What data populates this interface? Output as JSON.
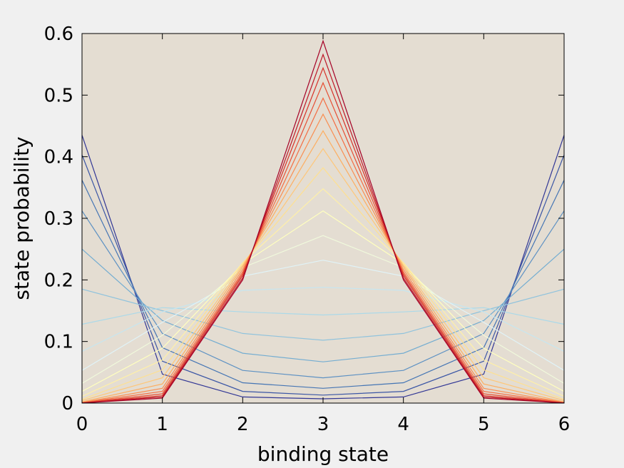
{
  "chart_data": {
    "type": "line",
    "title": "",
    "xlabel": "binding state",
    "ylabel": "state probability",
    "xlim": [
      0,
      6
    ],
    "ylim": [
      0,
      0.6
    ],
    "x": [
      0,
      1,
      2,
      3,
      4,
      5,
      6
    ],
    "xticks": [
      "0",
      "1",
      "2",
      "3",
      "4",
      "5",
      "6"
    ],
    "yticks": [
      "0",
      "0.1",
      "0.2",
      "0.3",
      "0.4",
      "0.5",
      "0.6"
    ],
    "grid": false,
    "plot_background": "#e4ddd2",
    "colormap": [
      "#313695",
      "#4575b4",
      "#74add1",
      "#abd9e9",
      "#e0f3f8",
      "#ffffbf",
      "#fee090",
      "#fdae61",
      "#f46d43",
      "#d73027",
      "#a50026"
    ],
    "series": [
      {
        "values": [
          0.435,
          0.047,
          0.01,
          0.007,
          0.01,
          0.047,
          0.435
        ]
      },
      {
        "values": [
          0.403,
          0.068,
          0.019,
          0.013,
          0.019,
          0.068,
          0.403
        ]
      },
      {
        "values": [
          0.362,
          0.09,
          0.033,
          0.024,
          0.033,
          0.09,
          0.362
        ]
      },
      {
        "values": [
          0.312,
          0.113,
          0.053,
          0.041,
          0.053,
          0.113,
          0.312
        ]
      },
      {
        "values": [
          0.25,
          0.134,
          0.081,
          0.067,
          0.081,
          0.134,
          0.25
        ]
      },
      {
        "values": [
          0.185,
          0.15,
          0.113,
          0.102,
          0.113,
          0.15,
          0.185
        ]
      },
      {
        "values": [
          0.128,
          0.155,
          0.148,
          0.143,
          0.148,
          0.155,
          0.128
        ]
      },
      {
        "values": [
          0.084,
          0.148,
          0.183,
          0.188,
          0.183,
          0.148,
          0.084
        ]
      },
      {
        "values": [
          0.053,
          0.131,
          0.206,
          0.232,
          0.206,
          0.131,
          0.053
        ]
      },
      {
        "values": [
          0.032,
          0.11,
          0.22,
          0.272,
          0.22,
          0.11,
          0.032
        ]
      },
      {
        "values": [
          0.019,
          0.089,
          0.226,
          0.312,
          0.226,
          0.089,
          0.019
        ]
      },
      {
        "values": [
          0.011,
          0.07,
          0.228,
          0.348,
          0.228,
          0.07,
          0.011
        ]
      },
      {
        "values": [
          0.006,
          0.054,
          0.227,
          0.382,
          0.227,
          0.054,
          0.006
        ]
      },
      {
        "values": [
          0.004,
          0.041,
          0.224,
          0.413,
          0.224,
          0.041,
          0.004
        ]
      },
      {
        "values": [
          0.002,
          0.031,
          0.221,
          0.442,
          0.221,
          0.031,
          0.002
        ]
      },
      {
        "values": [
          0.001,
          0.024,
          0.217,
          0.469,
          0.217,
          0.024,
          0.001
        ]
      },
      {
        "values": [
          0.0007,
          0.019,
          0.213,
          0.495,
          0.213,
          0.019,
          0.0007
        ]
      },
      {
        "values": [
          0.0004,
          0.015,
          0.21,
          0.52,
          0.21,
          0.015,
          0.0004
        ]
      },
      {
        "values": [
          0.0002,
          0.012,
          0.207,
          0.544,
          0.207,
          0.012,
          0.0002
        ]
      },
      {
        "values": [
          0.0001,
          0.01,
          0.203,
          0.566,
          0.203,
          0.01,
          0.0001
        ]
      },
      {
        "values": [
          0.0001,
          0.008,
          0.2,
          0.588,
          0.2,
          0.008,
          0.0001
        ]
      }
    ]
  }
}
